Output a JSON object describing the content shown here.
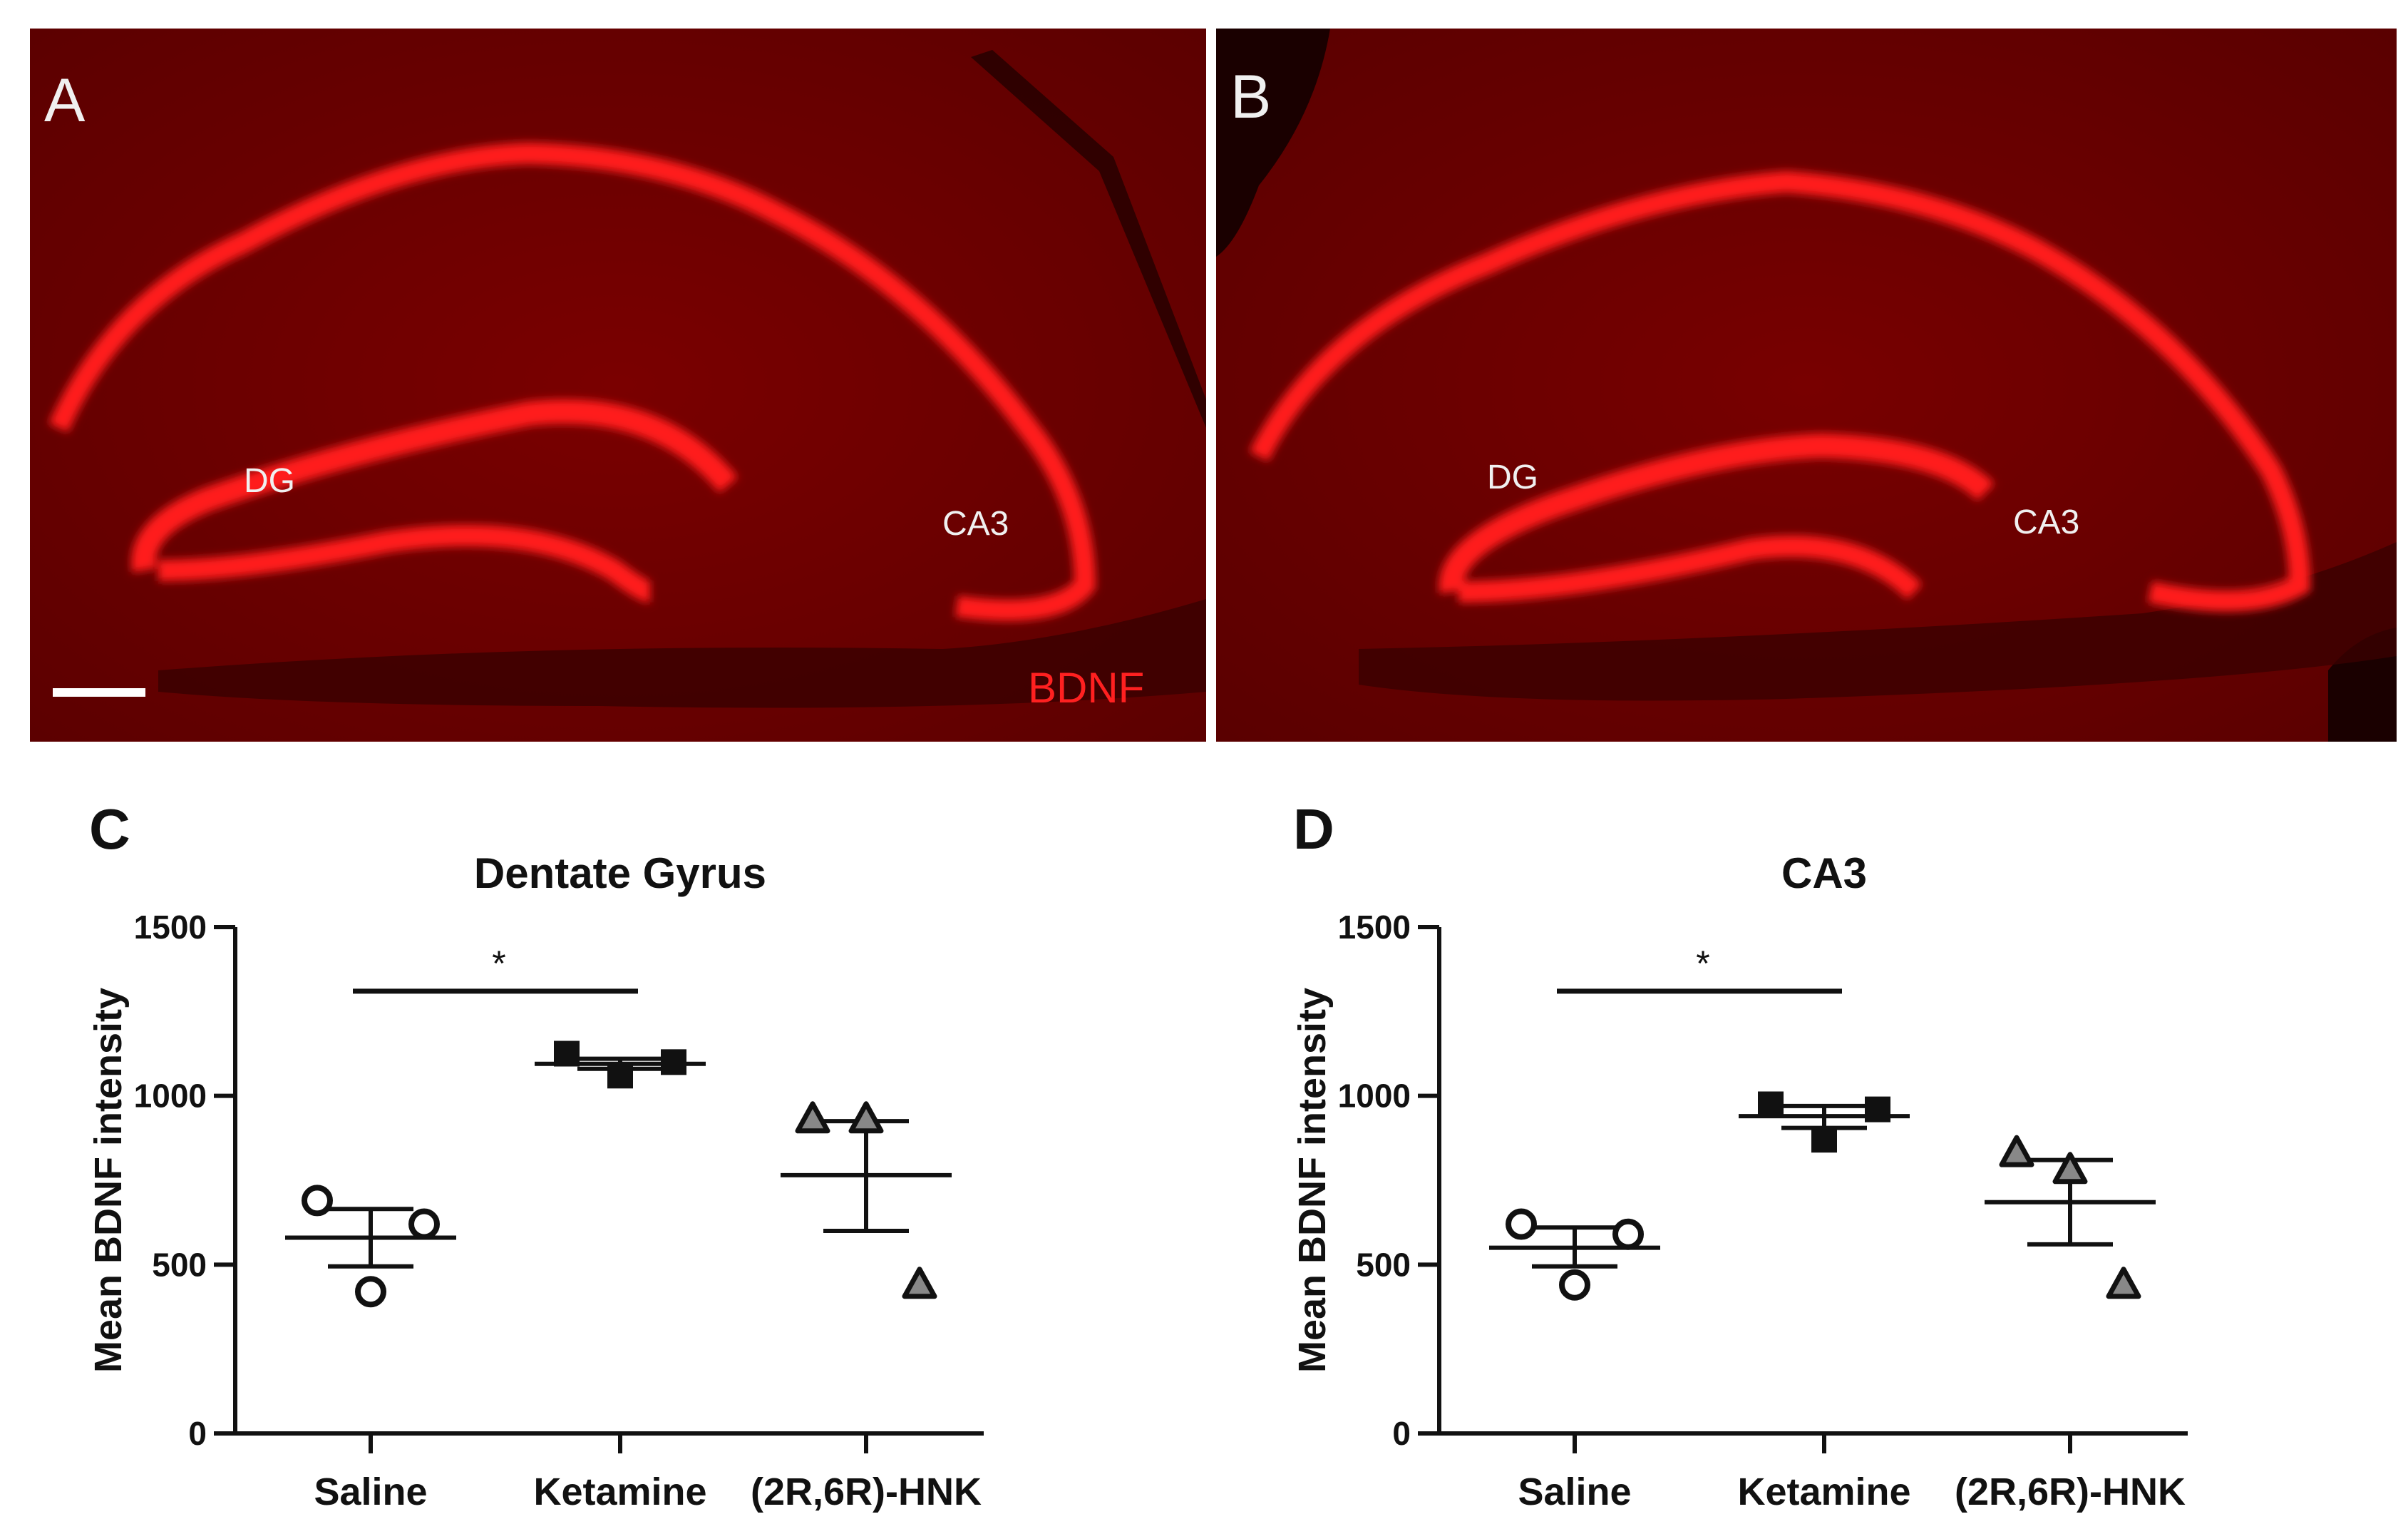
{
  "images": {
    "panel_a": {
      "letter": "A",
      "labels": [
        "DG",
        "CA3"
      ],
      "stain": "BDNF"
    },
    "panel_b": {
      "letter": "B",
      "labels": [
        "DG",
        "CA3"
      ]
    }
  },
  "colors": {
    "tissue_bg": "#6a0000",
    "stain": "#ff1a1a",
    "label_text": "#f0f0f0"
  },
  "chart_data": [
    {
      "letter": "C",
      "type": "scatter",
      "title": "Dentate Gyrus",
      "ylabel": "Mean BDNF intensity",
      "xlabel": "",
      "categories": [
        "Saline",
        "Ketamine",
        "(2R,6R)-HNK"
      ],
      "ylim": [
        0,
        1500
      ],
      "yticks": [
        0,
        500,
        1000,
        1500
      ],
      "series": [
        {
          "marker": "open-circle",
          "points": [
            690,
            420,
            620
          ],
          "mean": 580,
          "sem": [
            495,
            665
          ]
        },
        {
          "marker": "filled-square",
          "points": [
            1125,
            1060,
            1100
          ],
          "mean": 1095,
          "sem": [
            1080,
            1110
          ]
        },
        {
          "marker": "gray-triangle",
          "points": [
            930,
            930,
            440
          ],
          "mean": 765,
          "sem": [
            600,
            925
          ]
        }
      ],
      "significance": {
        "from": 0,
        "to": 1,
        "y": 1310,
        "label": "*"
      }
    },
    {
      "letter": "D",
      "type": "scatter",
      "title": "CA3",
      "ylabel": "Mean BDNF intensity",
      "xlabel": "",
      "categories": [
        "Saline",
        "Ketamine",
        "(2R,6R)-HNK"
      ],
      "ylim": [
        0,
        1500
      ],
      "yticks": [
        0,
        500,
        1000,
        1500
      ],
      "series": [
        {
          "marker": "open-circle",
          "points": [
            620,
            440,
            590
          ],
          "mean": 550,
          "sem": [
            495,
            610
          ]
        },
        {
          "marker": "filled-square",
          "points": [
            975,
            870,
            960
          ],
          "mean": 940,
          "sem": [
            905,
            970
          ]
        },
        {
          "marker": "gray-triangle",
          "points": [
            830,
            780,
            440
          ],
          "mean": 685,
          "sem": [
            560,
            810
          ]
        }
      ],
      "significance": {
        "from": 0,
        "to": 1,
        "y": 1310,
        "label": "*"
      }
    }
  ]
}
